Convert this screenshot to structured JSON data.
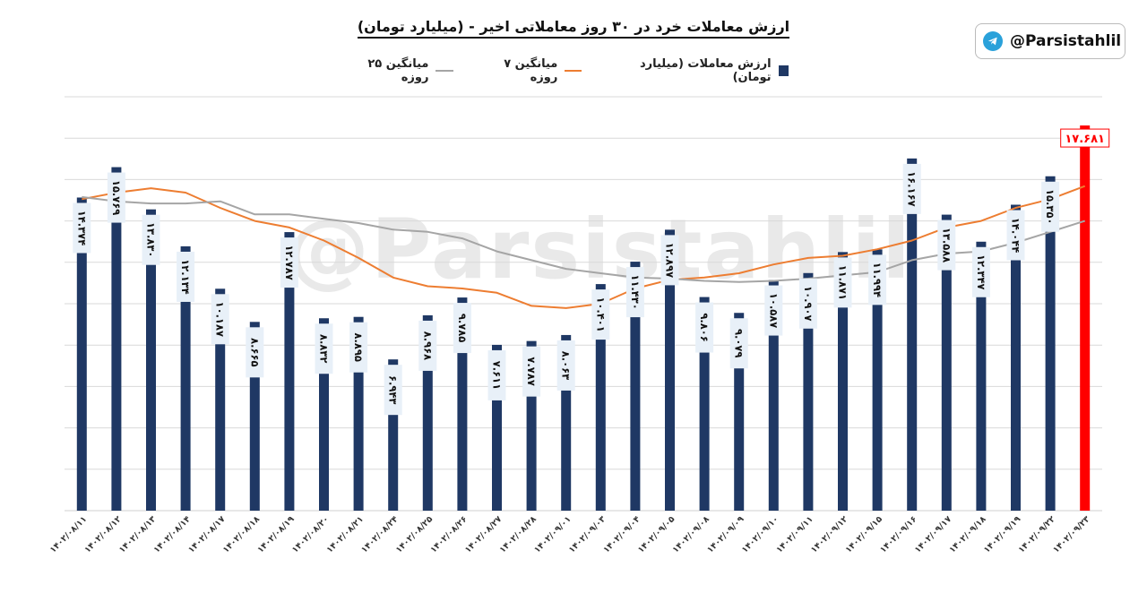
{
  "title": "ارزش معاملات خرد در ۳۰ روز معاملاتی اخیر - (میلیارد تومان)",
  "handle": "@Parsistahlil",
  "watermark": "@Parsistahlil",
  "colors": {
    "bar": "#1F3864",
    "last_bar": "#FF0000",
    "ma7": "#ED7D31",
    "ma25": "#A5A5A5",
    "grid": "#D9D9D9",
    "telegram": "#2AA1DA"
  },
  "icons": {
    "badge": "telegram-icon"
  },
  "chart_data": {
    "type": "bar",
    "categories": [
      "۱۴۰۲/۰۸/۱۱",
      "۱۴۰۲/۰۸/۱۲",
      "۱۴۰۲/۰۸/۱۳",
      "۱۴۰۲/۰۸/۱۴",
      "۱۴۰۲/۰۸/۱۷",
      "۱۴۰۲/۰۸/۱۸",
      "۱۴۰۲/۰۸/۱۹",
      "۱۴۰۲/۰۸/۲۰",
      "۱۴۰۲/۰۸/۲۱",
      "۱۴۰۲/۰۸/۲۴",
      "۱۴۰۲/۰۸/۲۵",
      "۱۴۰۲/۰۸/۲۶",
      "۱۴۰۲/۰۸/۲۷",
      "۱۴۰۲/۰۸/۲۸",
      "۱۴۰۲/۰۹/۰۱",
      "۱۴۰۲/۰۹/۰۳",
      "۱۴۰۲/۰۹/۰۴",
      "۱۴۰۲/۰۹/۰۵",
      "۱۴۰۲/۰۹/۰۸",
      "۱۴۰۲/۰۹/۰۹",
      "۱۴۰۲/۰۹/۱۰",
      "۱۴۰۲/۰۹/۱۱",
      "۱۴۰۲/۰۹/۱۲",
      "۱۴۰۲/۰۹/۱۵",
      "۱۴۰۲/۰۹/۱۶",
      "۱۴۰۲/۰۹/۱۷",
      "۱۴۰۲/۰۹/۱۸",
      "۱۴۰۲/۰۹/۱۹",
      "۱۴۰۲/۰۹/۲۲",
      "۱۴۰۲/۰۹/۲۳"
    ],
    "series": [
      {
        "name": "ارزش معاملات (میلیارد تومان)",
        "kind": "bar",
        "values": [
          14.374,
          15.769,
          13.83,
          12.134,
          10.187,
          8.665,
          12.787,
          8.832,
          8.895,
          6.943,
          8.968,
          9.785,
          7.611,
          7.787,
          8.063,
          10.401,
          11.43,
          12.897,
          9.806,
          9.079,
          10.587,
          10.907,
          11.871,
          11.994,
          16.167,
          13.588,
          12.347,
          14.044,
          15.35,
          17.681
        ],
        "labels": [
          "۱۴.۳۷۴",
          "۱۵.۷۶۹",
          "۱۳.۸۳۰",
          "۱۲.۱۳۴",
          "۱۰.۱۸۷",
          "۸.۶۶۵",
          "۱۲.۷۸۷",
          "۸.۸۳۲",
          "۸.۸۹۵",
          "۶.۹۴۳",
          "۸.۹۶۸",
          "۹.۷۸۵",
          "۷.۶۱۱",
          "۷.۷۸۷",
          "۸.۰۶۳",
          "۱۰.۴۰۱",
          "۱۱.۴۳۰",
          "۱۲.۸۹۷",
          "۹.۸۰۶",
          "۹.۰۷۹",
          "۱۰.۵۸۷",
          "۱۰.۹۰۷",
          "۱۱.۸۷۱",
          "۱۱.۹۹۴",
          "۱۶.۱۶۷",
          "۱۳.۵۸۸",
          "۱۲.۳۴۷",
          "۱۴.۰۴۴",
          "۱۵.۳۵۰",
          "۱۷.۶۸۱"
        ]
      },
      {
        "name": "میانگین ۷ روزه",
        "kind": "line",
        "values": [
          14.3,
          14.6,
          14.8,
          14.6,
          13.9,
          13.3,
          13.0,
          12.4,
          11.6,
          10.7,
          10.3,
          10.2,
          10.0,
          9.4,
          9.3,
          9.5,
          10.2,
          10.6,
          10.7,
          10.9,
          11.3,
          11.6,
          11.7,
          12.0,
          12.4,
          13.0,
          13.3,
          13.9,
          14.3,
          14.9
        ]
      },
      {
        "name": "میانگین ۲۵ روزه",
        "kind": "line",
        "values": [
          14.4,
          14.2,
          14.1,
          14.1,
          14.2,
          13.6,
          13.6,
          13.4,
          13.2,
          12.9,
          12.8,
          12.5,
          11.9,
          11.5,
          11.1,
          10.9,
          10.7,
          10.65,
          10.55,
          10.5,
          10.55,
          10.65,
          10.8,
          10.95,
          11.5,
          11.8,
          11.9,
          12.3,
          12.8,
          13.3
        ]
      }
    ],
    "ylim": [
      0,
      19
    ],
    "grid": true,
    "legend_position": "top"
  }
}
